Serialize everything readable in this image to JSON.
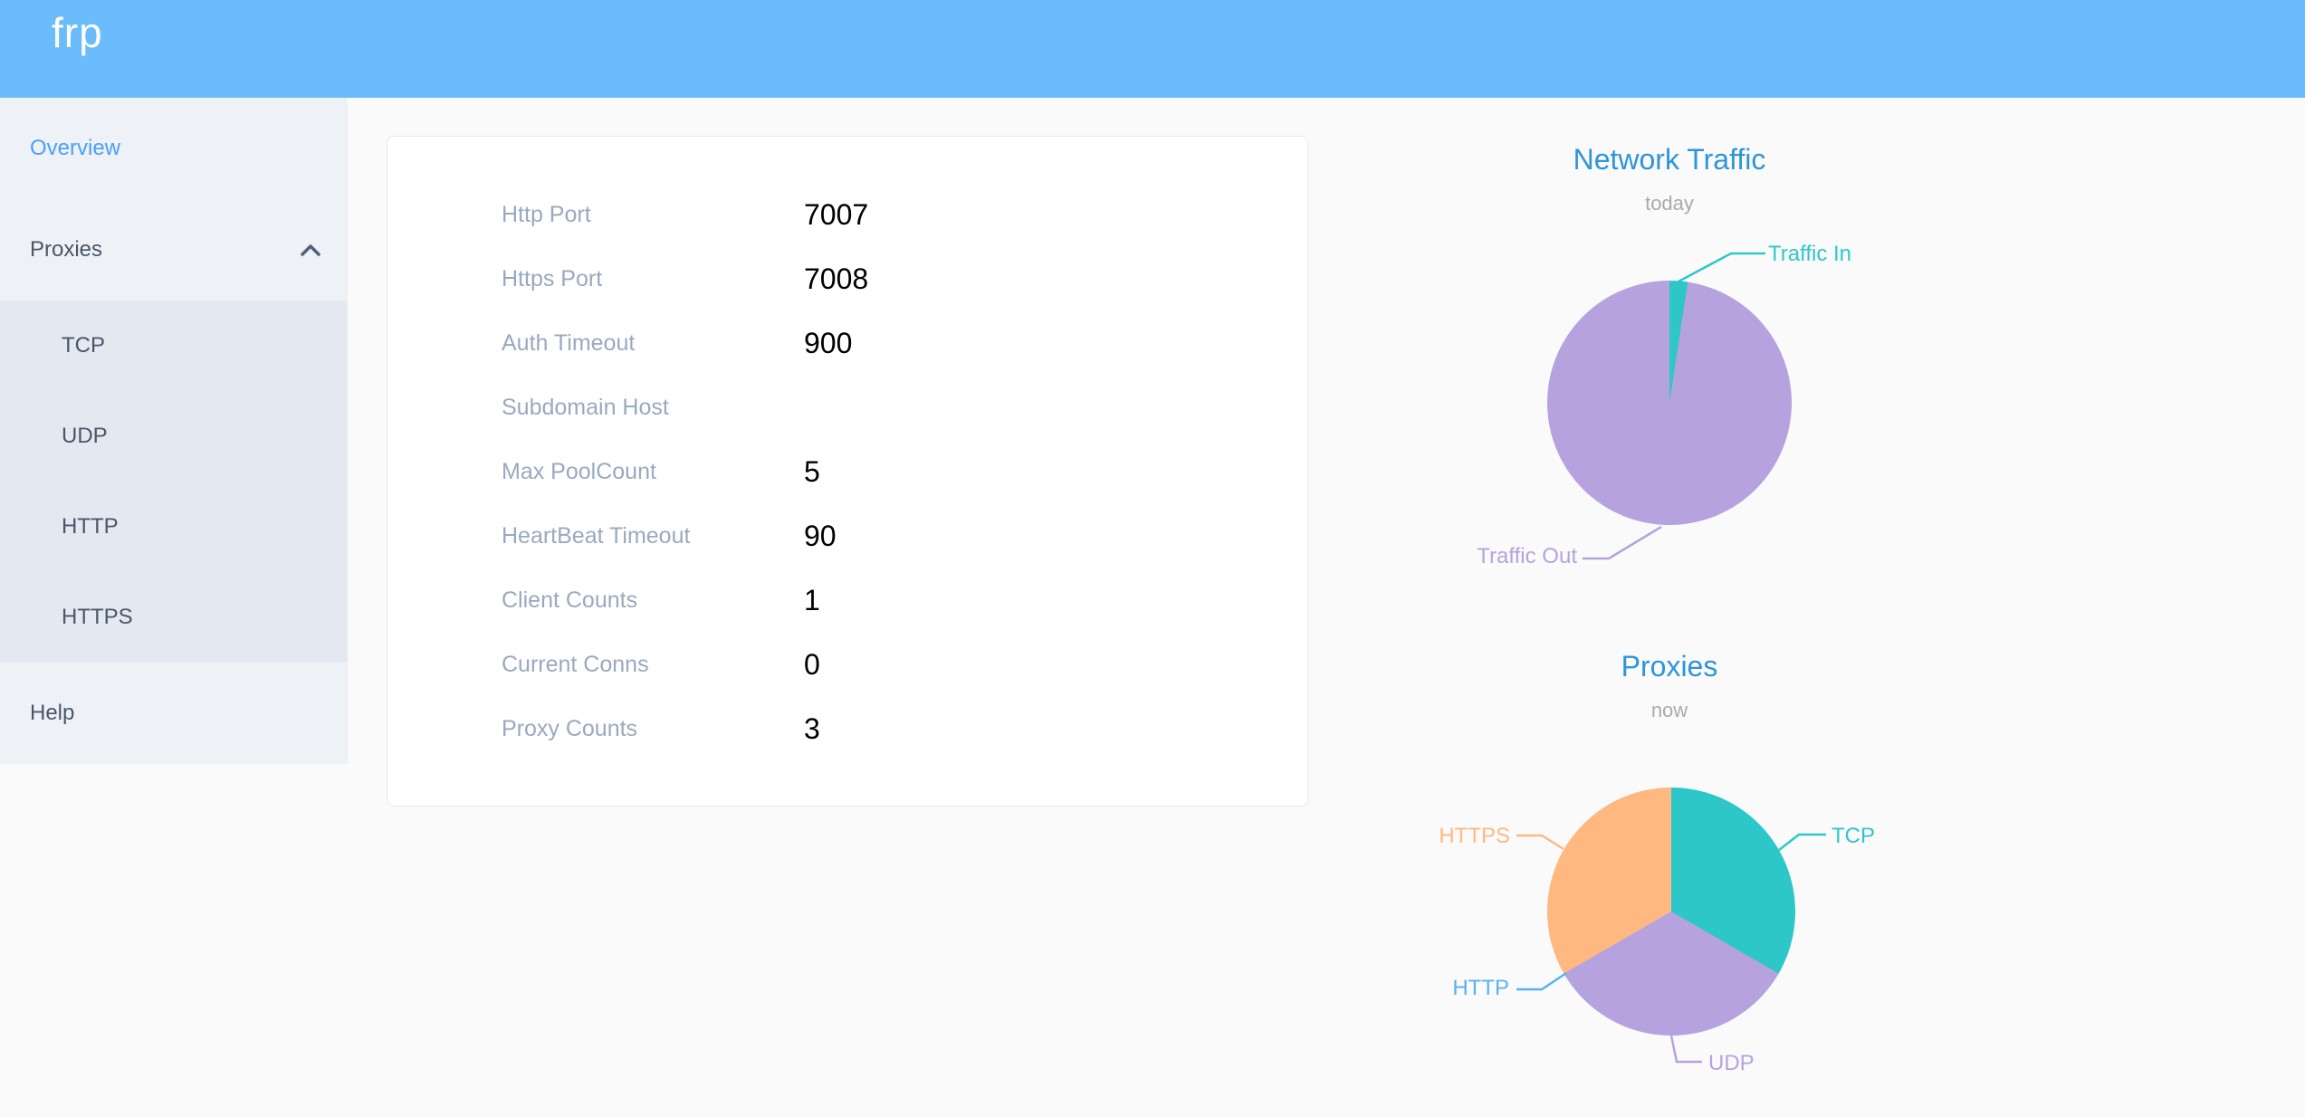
{
  "header": {
    "logo": "frp"
  },
  "sidebar": {
    "overview_label": "Overview",
    "proxies_label": "Proxies",
    "proxies_expanded": true,
    "proxies_children": [
      "TCP",
      "UDP",
      "HTTP",
      "HTTPS"
    ],
    "help_label": "Help"
  },
  "server_info": {
    "rows": [
      {
        "label": "Http Port",
        "value": "7007"
      },
      {
        "label": "Https Port",
        "value": "7008"
      },
      {
        "label": "Auth Timeout",
        "value": "900"
      },
      {
        "label": "Subdomain Host",
        "value": ""
      },
      {
        "label": "Max PoolCount",
        "value": "5"
      },
      {
        "label": "HeartBeat Timeout",
        "value": "90"
      },
      {
        "label": "Client Counts",
        "value": "1"
      },
      {
        "label": "Current Conns",
        "value": "0"
      },
      {
        "label": "Proxy Counts",
        "value": "3"
      }
    ]
  },
  "chart_data": [
    {
      "type": "pie",
      "title": "Network Traffic",
      "subtitle": "today",
      "legend_position": "callout-labels",
      "values_are": "estimated percent read from slice angles",
      "series": [
        {
          "name": "Traffic In",
          "value": 2.4,
          "color": "#2ec7c9"
        },
        {
          "name": "Traffic Out",
          "value": 97.6,
          "color": "#b6a2de"
        }
      ]
    },
    {
      "type": "pie",
      "title": "Proxies",
      "subtitle": "now",
      "legend_position": "callout-labels",
      "values_are": "proxy counts per type (three equal thirds, HTTP empty)",
      "series": [
        {
          "name": "TCP",
          "value": 1,
          "color": "#2ec7c9"
        },
        {
          "name": "UDP",
          "value": 1,
          "color": "#b6a2de"
        },
        {
          "name": "HTTP",
          "value": 0,
          "color": "#5ab1ef"
        },
        {
          "name": "HTTPS",
          "value": 1,
          "color": "#ffb980"
        }
      ]
    }
  ],
  "colors": {
    "header_blue": "#6bbcfb",
    "page_bg": "#fafafb",
    "sidebar_bg": "#eef1f6",
    "submenu_bg": "#e4e8f1",
    "sidebar_text": "#48576a",
    "active_blue": "#48a1fa",
    "card_border": "#e4e9f2",
    "label_gray": "#99a9bf",
    "value_black": "#000000",
    "title_blue": "#2e95d8",
    "subtitle_gray": "#aaaaaa",
    "teal": "#2ec7c9",
    "purple": "#b6a2de",
    "blue": "#5ab1ef",
    "orange": "#ffb980"
  }
}
